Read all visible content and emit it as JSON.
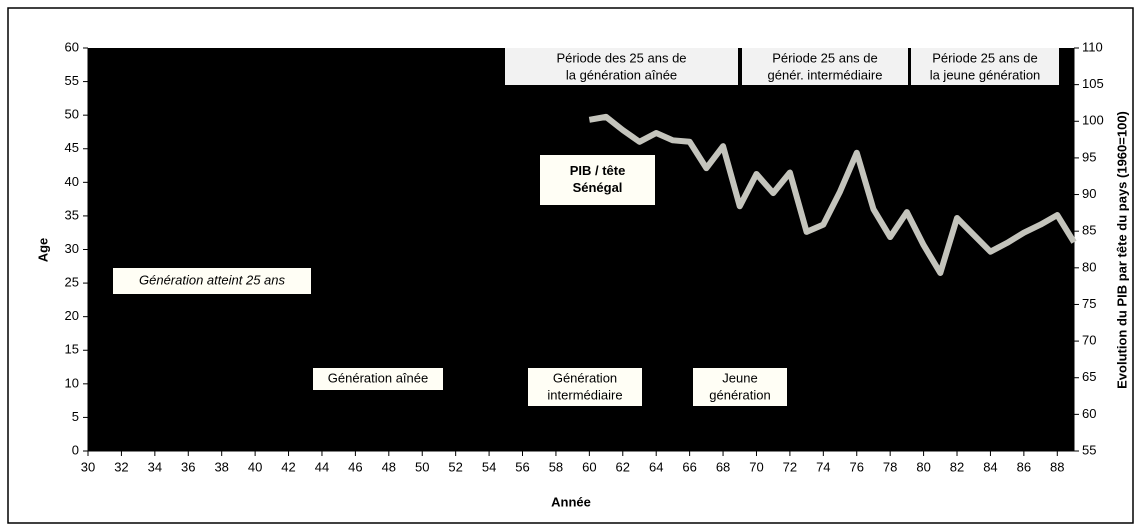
{
  "chart_data": {
    "type": "line",
    "xlabel": "Année",
    "ylabel": "Age",
    "y2label": "Evolution du PIB par tête du pays (1960=100)",
    "xlim": [
      30,
      89
    ],
    "xticks": [
      30,
      32,
      34,
      36,
      38,
      40,
      42,
      44,
      46,
      48,
      50,
      52,
      54,
      56,
      58,
      60,
      62,
      64,
      66,
      68,
      70,
      72,
      74,
      76,
      78,
      80,
      82,
      84,
      86,
      88
    ],
    "ylim": [
      0,
      60
    ],
    "yticks": [
      0,
      5,
      10,
      15,
      20,
      25,
      30,
      35,
      40,
      45,
      50,
      55,
      60
    ],
    "y2lim": [
      55,
      110
    ],
    "y2ticks": [
      55,
      60,
      65,
      70,
      75,
      80,
      85,
      90,
      95,
      100,
      105,
      110
    ],
    "background": "#000000",
    "series": [
      {
        "color": "#c4c4bc",
        "axis": "y2",
        "x": [
          60,
          61,
          62,
          63,
          64,
          65,
          66,
          67,
          68,
          69,
          70,
          71,
          72,
          73,
          74,
          75,
          76,
          77,
          78,
          79,
          80,
          81,
          82,
          83,
          84,
          85,
          86,
          87,
          88,
          89
        ],
        "values": [
          100.2,
          100.6,
          98.8,
          97.2,
          98.4,
          97.4,
          97.2,
          93.6,
          96.6,
          88.4,
          92.8,
          90.2,
          93,
          84.9,
          85.9,
          90.4,
          95.7,
          88,
          84.2,
          87.6,
          83.1,
          79.3,
          86.8,
          84.5,
          82.2,
          83.4,
          84.8,
          85.9,
          87.2,
          83.5
        ]
      }
    ],
    "annotations": [
      {
        "lines": [
          "Période des 25 ans de",
          "la génération aînée"
        ]
      },
      {
        "lines": [
          "Période 25 ans de",
          "génér. intermédiaire"
        ]
      },
      {
        "lines": [
          "Période 25 ans de",
          "la jeune génération"
        ]
      },
      {
        "lines": [
          "PIB / tête",
          "Sénégal"
        ],
        "bold": true
      },
      {
        "lines": [
          "Génération atteint 25 ans"
        ],
        "italic": true
      },
      {
        "lines": [
          "Génération aînée"
        ]
      },
      {
        "lines": [
          "Génération",
          "intermédiaire"
        ]
      },
      {
        "lines": [
          "Jeune",
          "génération"
        ]
      }
    ]
  }
}
